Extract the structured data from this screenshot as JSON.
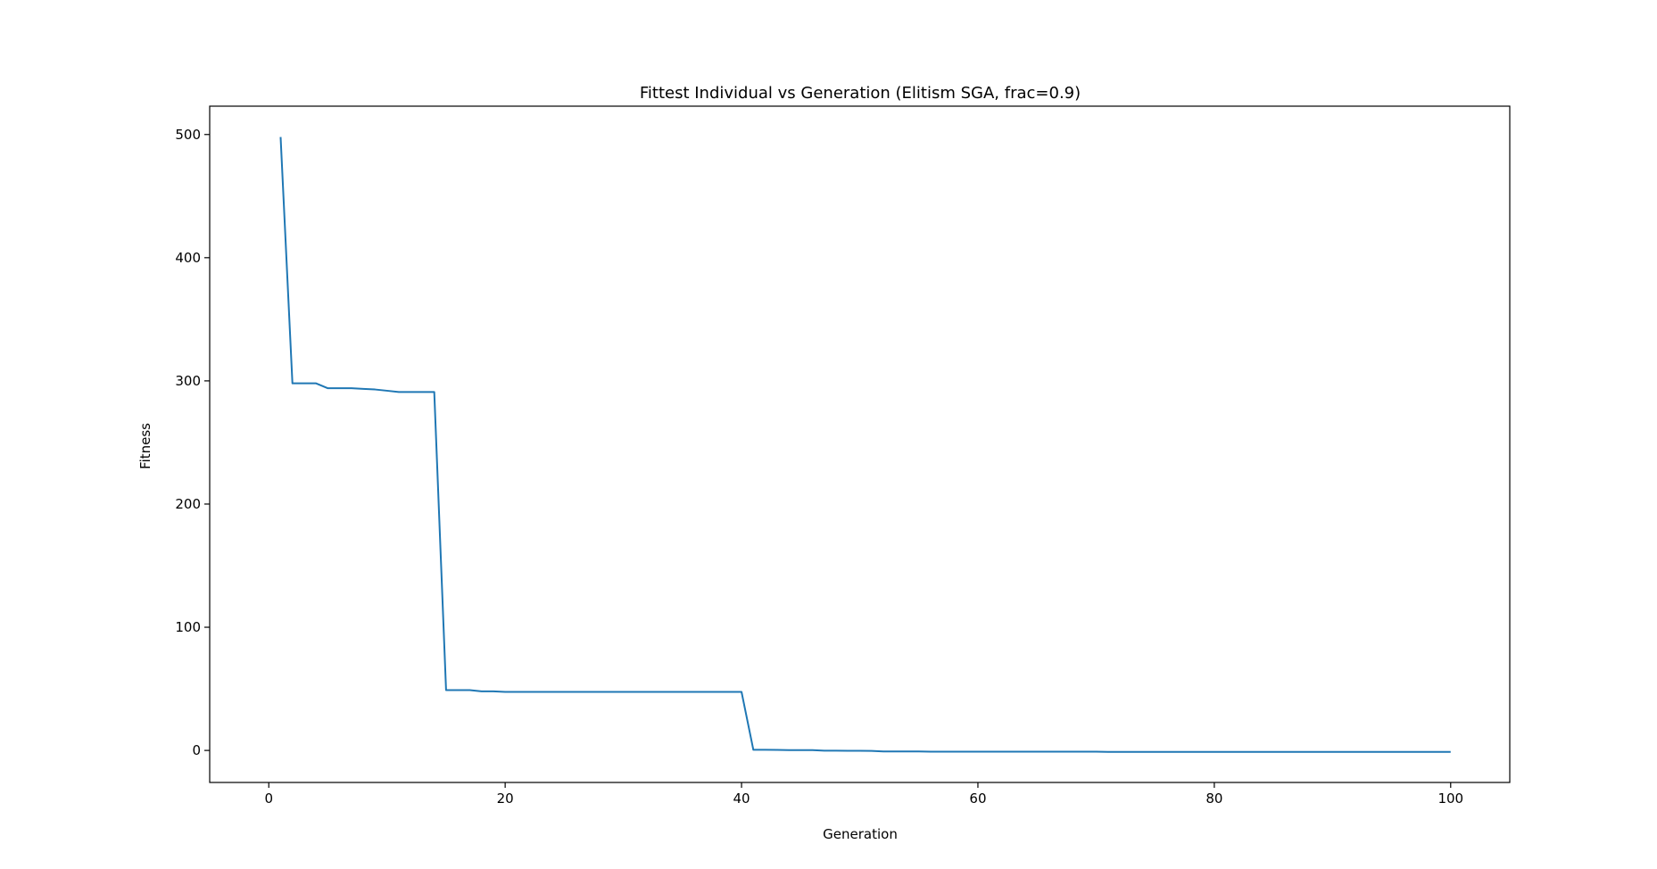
{
  "chart_data": {
    "type": "line",
    "title": "Fittest Individual vs Generation (Elitism SGA, frac=0.9)",
    "xlabel": "Generation",
    "ylabel": "Fitness",
    "xlim": [
      -5,
      105
    ],
    "ylim": [
      -26,
      523
    ],
    "xticks": [
      0,
      20,
      40,
      60,
      80,
      100
    ],
    "yticks": [
      0,
      100,
      200,
      300,
      400,
      500
    ],
    "grid": false,
    "line_color": "#1f77b4",
    "series": [
      {
        "x": [
          1,
          2,
          3,
          4,
          5,
          6,
          7,
          8,
          9,
          10,
          11,
          12,
          13,
          14,
          15,
          16,
          17,
          18,
          19,
          20,
          21,
          22,
          23,
          24,
          25,
          26,
          27,
          28,
          29,
          30,
          31,
          32,
          33,
          34,
          35,
          36,
          37,
          38,
          39,
          40,
          41,
          42,
          43,
          44,
          45,
          46,
          47,
          48,
          49,
          50,
          51,
          52,
          53,
          54,
          55,
          56,
          57,
          58,
          59,
          60,
          61,
          62,
          63,
          64,
          65,
          66,
          67,
          68,
          69,
          70,
          71,
          72,
          73,
          74,
          75,
          76,
          77,
          78,
          79,
          80,
          81,
          82,
          83,
          84,
          85,
          86,
          87,
          88,
          89,
          90,
          91,
          92,
          93,
          94,
          95,
          96,
          97,
          98,
          99,
          100
        ],
        "y": [
          498,
          298,
          298,
          298,
          294,
          294,
          294,
          293.5,
          293,
          292,
          291,
          291,
          291,
          291,
          49,
          49,
          49,
          48,
          48,
          47.5,
          47.5,
          47.5,
          47.5,
          47.5,
          47.5,
          47.5,
          47.5,
          47.5,
          47.5,
          47.5,
          47.5,
          47.5,
          47.5,
          47.5,
          47.5,
          47.5,
          47.5,
          47.5,
          47.5,
          47.5,
          0.5,
          0.5,
          0.4,
          0.3,
          0.3,
          0.3,
          -0.2,
          -0.2,
          -0.3,
          -0.3,
          -0.4,
          -0.8,
          -0.8,
          -0.8,
          -0.8,
          -1,
          -1,
          -1,
          -1,
          -1,
          -1,
          -1,
          -1,
          -1,
          -1,
          -1,
          -1,
          -1,
          -1,
          -1,
          -1.2,
          -1.2,
          -1.2,
          -1.2,
          -1.2,
          -1.2,
          -1.2,
          -1.2,
          -1.2,
          -1.2,
          -1.2,
          -1.2,
          -1.2,
          -1.2,
          -1.2,
          -1.2,
          -1.2,
          -1.2,
          -1.2,
          -1.2,
          -1.2,
          -1.2,
          -1.2,
          -1.2,
          -1.2,
          -1.2,
          -1.2,
          -1.2,
          -1.2,
          -1.2
        ]
      }
    ]
  }
}
